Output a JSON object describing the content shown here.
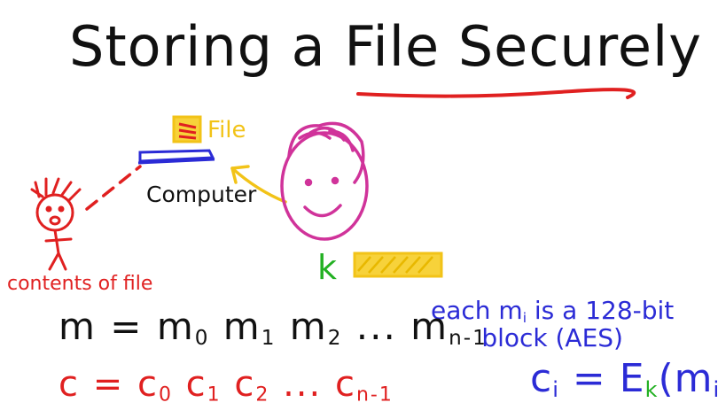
{
  "title": "Storing a File Securely",
  "labels": {
    "file": "File",
    "computer": "Computer",
    "contents": "contents of file",
    "key": "k"
  },
  "note": {
    "line1": "each m",
    "line1_sub": "i",
    "line1_rest": " is a 128-bit",
    "line2": "block (AES)"
  },
  "message_eq": {
    "lhs": "m = ",
    "terms": [
      "m",
      "m",
      "m"
    ],
    "subs": [
      "0",
      "1",
      "2"
    ],
    "dots": " ... ",
    "last": "m",
    "last_sub": "n-1"
  },
  "cipher_eq": {
    "lhs": "c = ",
    "terms": [
      "c",
      "c",
      "c"
    ],
    "subs": [
      "0",
      "1",
      "2"
    ],
    "dots": " ... ",
    "last": "c",
    "last_sub": "n-1"
  },
  "encrypt_eq": {
    "c": "c",
    "c_sub": "i",
    "eq": " = E",
    "e_sub": "k",
    "open": "(m",
    "m_sub": "i",
    "close": ")"
  },
  "colors": {
    "ink": "#111111",
    "red": "#e02020",
    "yellow": "#f2c318",
    "magenta": "#d0339a",
    "blue": "#2b2bd6",
    "green": "#22b022"
  }
}
